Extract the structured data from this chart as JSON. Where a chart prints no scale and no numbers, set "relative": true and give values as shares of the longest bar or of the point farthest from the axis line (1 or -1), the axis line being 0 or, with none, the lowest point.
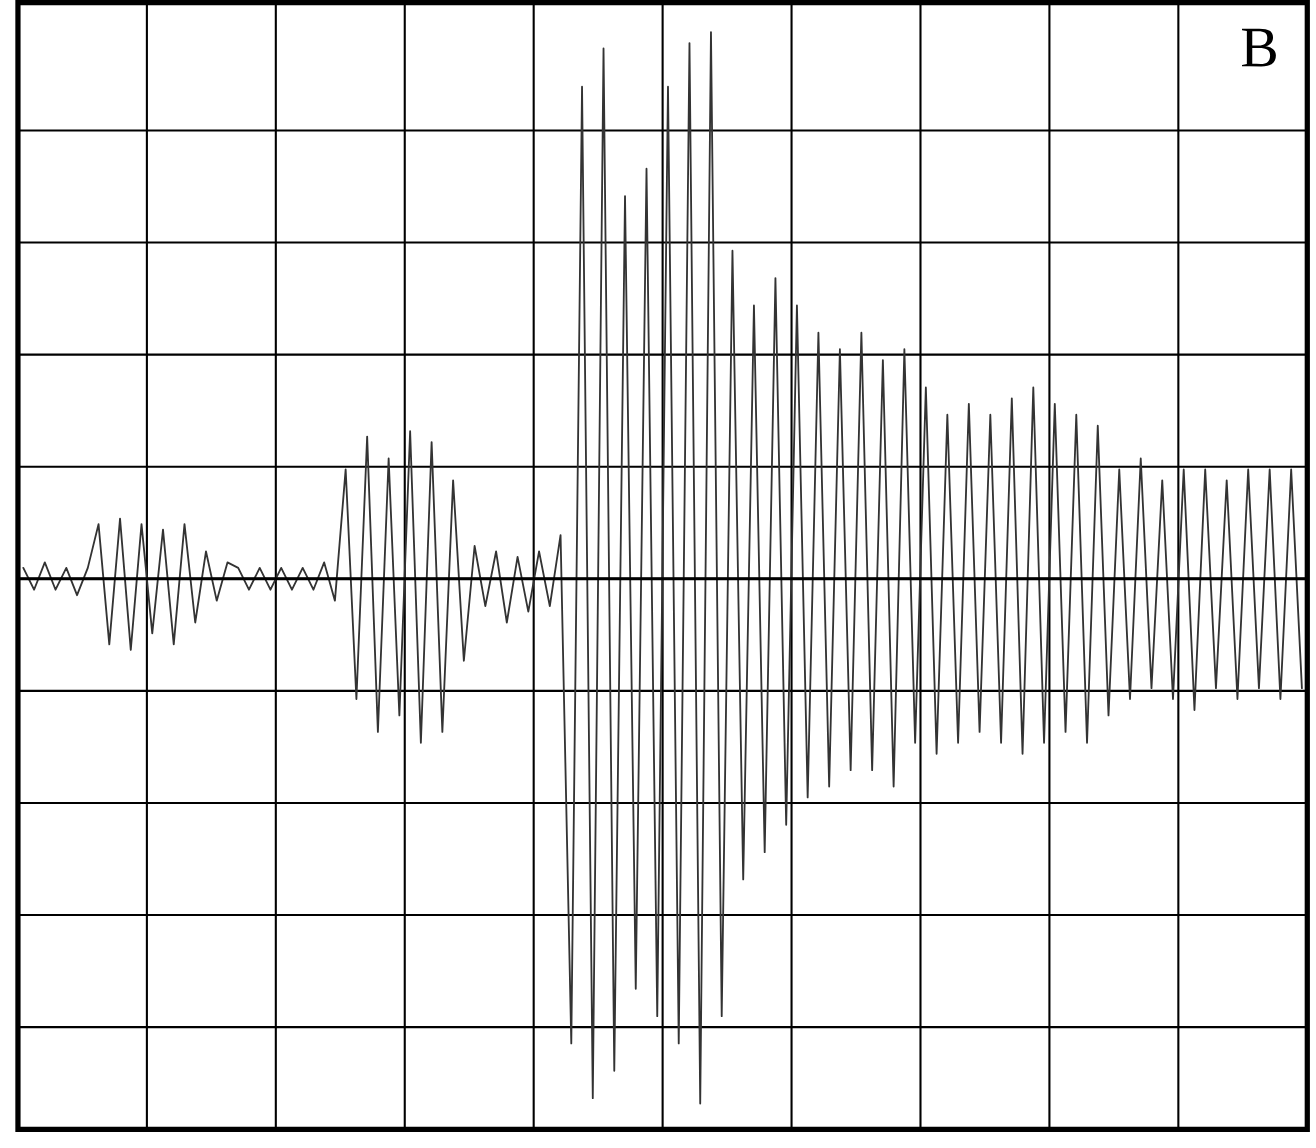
{
  "chart_data": {
    "type": "line",
    "relative": true,
    "grid": true,
    "tick_labels": false,
    "annotations": [
      "B"
    ],
    "categories": [
      null,
      null,
      null,
      null,
      null,
      null,
      null,
      null,
      null,
      null,
      null,
      null,
      null,
      null,
      null,
      null,
      null,
      null,
      null,
      null,
      null,
      null,
      null,
      null,
      null,
      null,
      null,
      null,
      null,
      null,
      null,
      null,
      null,
      null,
      null,
      null,
      null,
      null,
      null,
      null,
      null,
      null,
      null,
      null,
      null,
      null,
      null,
      null,
      null,
      null,
      null,
      null,
      null,
      null,
      null,
      null,
      null,
      null,
      null,
      null,
      null,
      null,
      null,
      null,
      null,
      null,
      null,
      null,
      null,
      null,
      null,
      null,
      null,
      null,
      null,
      null,
      null,
      null,
      null,
      null,
      null,
      null,
      null,
      null,
      null,
      null,
      null,
      null,
      null,
      null,
      null,
      null,
      null,
      null,
      null,
      null,
      null,
      null,
      null,
      null,
      null,
      null,
      null,
      null,
      null,
      null,
      null,
      null,
      null,
      null,
      null,
      null,
      null,
      null,
      null,
      null,
      null,
      null,
      null,
      null
    ],
    "series": [
      {
        "color": "#333333",
        "values": [
          0.02,
          -0.02,
          0.03,
          -0.02,
          0.02,
          -0.03,
          0.02,
          0.1,
          -0.12,
          0.11,
          -0.13,
          0.1,
          -0.1,
          0.09,
          -0.12,
          0.1,
          -0.08,
          0.05,
          -0.04,
          0.03,
          0.02,
          -0.02,
          0.02,
          -0.02,
          0.02,
          -0.02,
          0.02,
          -0.02,
          0.03,
          -0.04,
          0.2,
          -0.22,
          0.26,
          -0.28,
          0.22,
          -0.25,
          0.27,
          -0.3,
          0.25,
          -0.28,
          0.18,
          -0.15,
          0.06,
          -0.05,
          0.05,
          -0.08,
          0.04,
          -0.06,
          0.05,
          -0.05,
          0.08,
          -0.85,
          0.9,
          -0.95,
          0.97,
          -0.9,
          0.7,
          -0.75,
          0.75,
          -0.8,
          0.9,
          -0.85,
          0.98,
          -0.96,
          1.0,
          -0.8,
          0.6,
          -0.55,
          0.5,
          -0.5,
          0.55,
          -0.45,
          0.5,
          -0.4,
          0.45,
          -0.38,
          0.42,
          -0.35,
          0.45,
          -0.35,
          0.4,
          -0.38,
          0.42,
          -0.3,
          0.35,
          -0.32,
          0.3,
          -0.3,
          0.32,
          -0.28,
          0.3,
          -0.3,
          0.33,
          -0.32,
          0.35,
          -0.3,
          0.32,
          -0.28,
          0.3,
          -0.3,
          0.28,
          -0.25,
          0.2,
          -0.22,
          0.22,
          -0.2,
          0.18,
          -0.22,
          0.2,
          -0.24,
          0.2,
          -0.2,
          0.18,
          -0.22,
          0.2,
          -0.2,
          0.2,
          -0.22,
          0.2,
          -0.2
        ]
      }
    ]
  }
}
